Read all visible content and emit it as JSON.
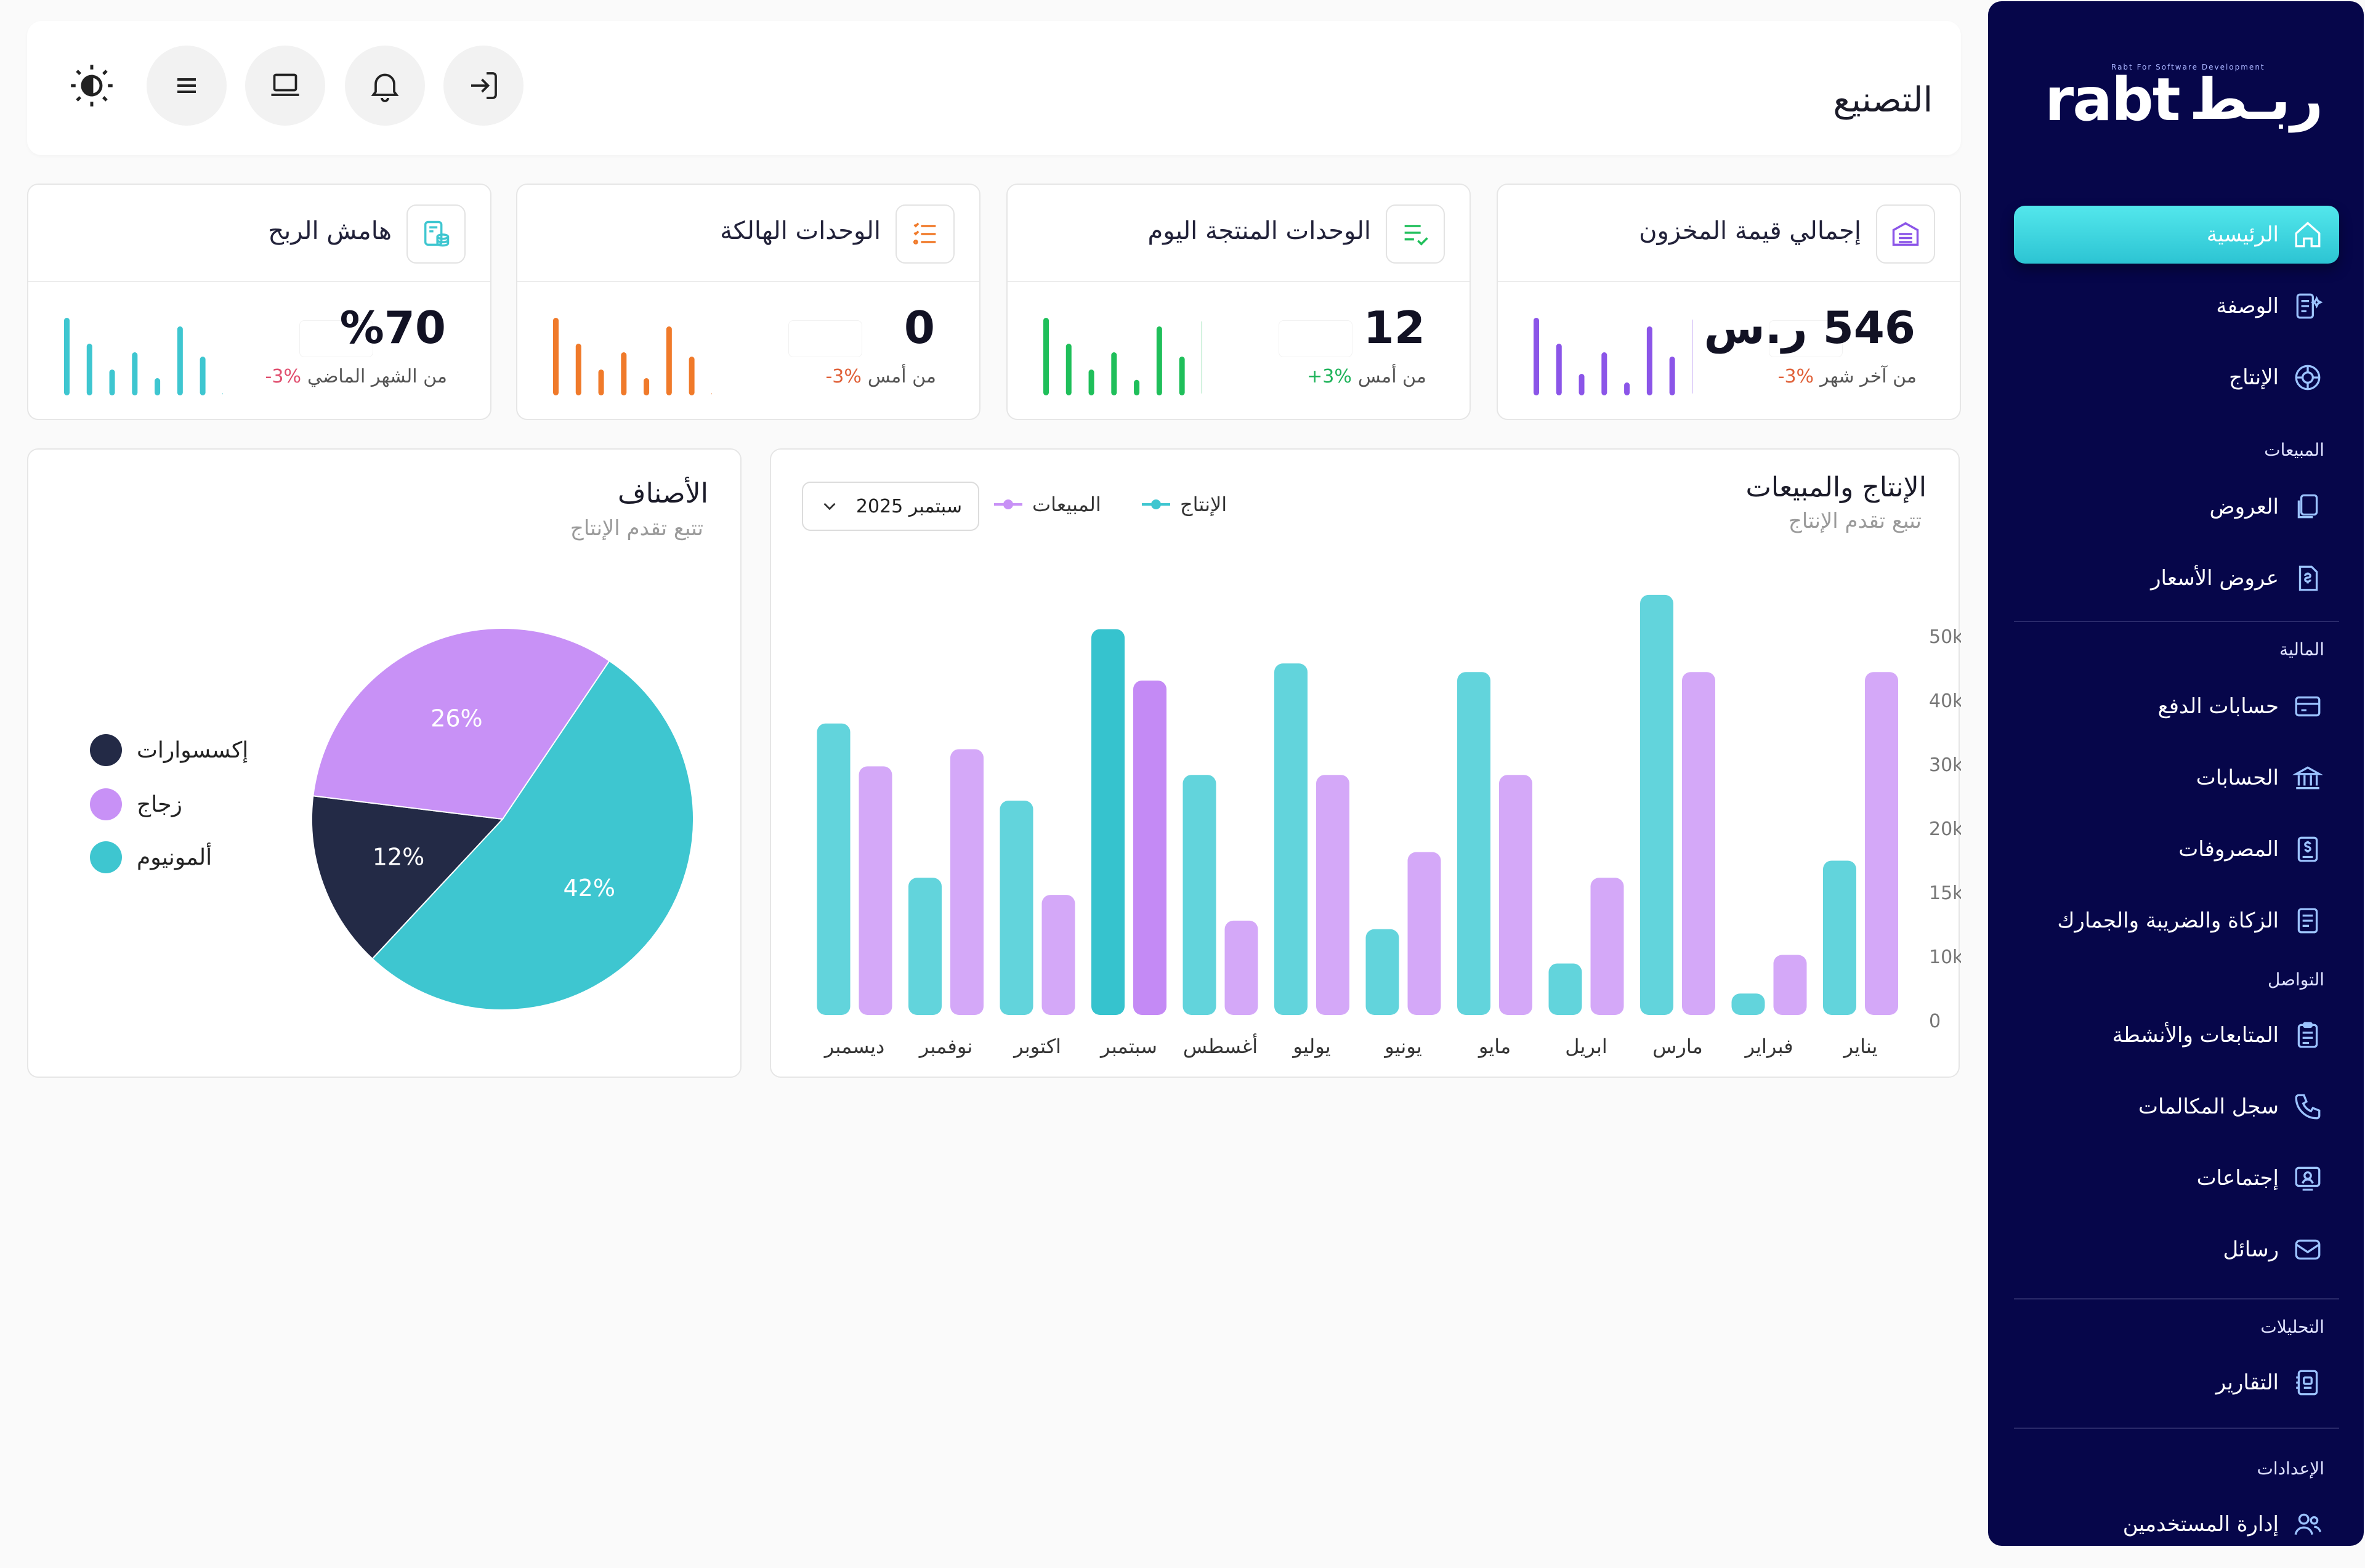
{
  "sidebar": {
    "logo_text": "rabt",
    "logo_arabic": "ربـط",
    "logo_tagline": "Rabt For Software Development",
    "items": [
      {
        "label": "الرئيسية",
        "icon": "home-icon",
        "active": true
      },
      {
        "label": "الوصفة",
        "icon": "recipe-icon"
      },
      {
        "label": "الإنتاج",
        "icon": "production-icon"
      },
      {
        "label": "العروض",
        "icon": "offers-icon"
      },
      {
        "label": "عروض الأسعار",
        "icon": "quotes-icon"
      },
      {
        "label": "حسابات الدفع",
        "icon": "payment-card-icon"
      },
      {
        "label": "الحسابات",
        "icon": "bank-icon"
      },
      {
        "label": "المصروفات",
        "icon": "expenses-icon"
      },
      {
        "label": "الزكاة والضريبة والجمارك",
        "icon": "tax-icon"
      },
      {
        "label": "المتابعات والأنشطة",
        "icon": "clipboard-icon"
      },
      {
        "label": "سجل المكالمات",
        "icon": "phone-icon"
      },
      {
        "label": "إجتماعات",
        "icon": "meeting-icon"
      },
      {
        "label": "رسائل",
        "icon": "message-icon"
      },
      {
        "label": "التقارير",
        "icon": "reports-icon"
      },
      {
        "label": "إدارة المستخدمين",
        "icon": "users-icon"
      }
    ],
    "sections": [
      "المبيعات",
      "المالية",
      "التواصل",
      "التحليلات",
      "الإعدادات"
    ]
  },
  "header": {
    "title": "التصنيع"
  },
  "kpis": [
    {
      "title": "إجمالي قيمة المخزون",
      "value": "546 ر.س",
      "change": "-3%",
      "change_color": "#e0623a",
      "note": "من آخر شهر",
      "color": "#8b55e8",
      "icon": "warehouse-icon",
      "spark": [
        0.9,
        0.6,
        0.25,
        0.5,
        0.15,
        0.8,
        0.45,
        0.9
      ]
    },
    {
      "title": "الوحدات المنتجة اليوم",
      "value": "12",
      "change": "+3%",
      "change_color": "#1fb35a",
      "note": "من أمس",
      "color": "#1fbf5a",
      "icon": "checklist-icon",
      "spark": [
        0.9,
        0.6,
        0.3,
        0.5,
        0.18,
        0.8,
        0.45,
        0.88
      ]
    },
    {
      "title": "الوحدات الهالكة",
      "value": "0",
      "change": "-3%",
      "change_color": "#e0623a",
      "note": "من أمس",
      "color": "#f07a2a",
      "icon": "list-icon",
      "spark": [
        0.9,
        0.6,
        0.3,
        0.5,
        0.2,
        0.8,
        0.45,
        0.04
      ]
    },
    {
      "title": "هامش الربح",
      "value": "%70",
      "change": "-3%",
      "change_color": "#e04e6e",
      "note": "من الشهر الماضي",
      "color": "#3ec6d0",
      "icon": "profit-icon",
      "spark": [
        0.9,
        0.6,
        0.3,
        0.5,
        0.2,
        0.8,
        0.45,
        0.04
      ]
    }
  ],
  "pie": {
    "title": "الأصناف",
    "subtitle": "تتبع تقدم الإنتاج",
    "legend": [
      {
        "label": "إكسسوارات",
        "color": "#232a46"
      },
      {
        "label": "زجاج",
        "color": "#c891f6"
      },
      {
        "label": "ألمونيوم",
        "color": "#3ec6d0"
      }
    ]
  },
  "bar": {
    "title": "الإنتاج والمبيعات",
    "subtitle": "تتبع تقدم الإنتاج",
    "select_value": "سبتمبر 2025",
    "legend_production": "الإنتاج",
    "legend_sales": "المبيعات"
  },
  "chart_data": [
    {
      "type": "pie",
      "title": "الأصناف",
      "labels": [
        "ألمونيوم",
        "إكسسوارات",
        "زجاج"
      ],
      "values": [
        42,
        12,
        26
      ],
      "value_labels": [
        "42%",
        "12%",
        "26%"
      ],
      "colors": [
        "#3ec6d0",
        "#232a46",
        "#c891f6"
      ]
    },
    {
      "type": "bar",
      "title": "الإنتاج والمبيعات",
      "categories": [
        "يناير",
        "فبراير",
        "مارس",
        "ابريل",
        "مايو",
        "يونيو",
        "يوليو",
        "أغسطس",
        "سبتمبر",
        "اكتوبر",
        "نوفمبر",
        "ديسمبر"
      ],
      "series": [
        {
          "name": "الإنتاج",
          "color": "#62d4dc",
          "values": [
            18,
            2.5,
            49,
            6,
            40,
            10,
            41,
            28,
            45,
            25,
            16,
            34
          ]
        },
        {
          "name": "المبيعات",
          "color": "#d4a8f8",
          "values": [
            40,
            7,
            40,
            16,
            28,
            19,
            28,
            11,
            39,
            14,
            31,
            29
          ]
        }
      ],
      "highlight_category": "سبتمبر",
      "yticks": [
        "0",
        "10k",
        "15k",
        "20k",
        "30k",
        "40k",
        "50k"
      ],
      "ylim": [
        0,
        50
      ]
    }
  ]
}
